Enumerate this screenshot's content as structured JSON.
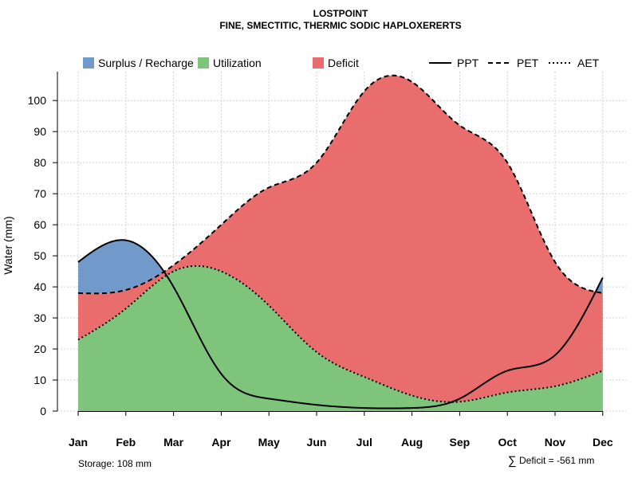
{
  "colors": {
    "surplus": "#7199c9",
    "utilization": "#7ec47a",
    "deficit": "#ea6d6e"
  },
  "chart_data": {
    "type": "area",
    "title": "LOSTPOINT",
    "subtitle": "FINE, SMECTITIC, THERMIC SODIC HAPLOXERERTS",
    "ylabel": "Water (mm)",
    "xlabel": "",
    "ylim": [
      0,
      108
    ],
    "yticks": [
      0,
      10,
      20,
      30,
      40,
      50,
      60,
      70,
      80,
      90,
      100
    ],
    "categories": [
      "Jan",
      "Feb",
      "Mar",
      "Apr",
      "May",
      "Jun",
      "Jul",
      "Aug",
      "Sep",
      "Oct",
      "Nov",
      "Dec"
    ],
    "series": [
      {
        "name": "PPT",
        "style": "solid",
        "values": [
          48,
          55,
          40,
          12,
          4,
          2,
          1,
          1,
          4,
          13,
          18,
          43
        ]
      },
      {
        "name": "PET",
        "style": "dashed",
        "values": [
          38,
          39,
          47,
          60,
          72,
          80,
          103,
          106,
          92,
          80,
          48,
          38
        ]
      },
      {
        "name": "AET",
        "style": "dotted",
        "values": [
          23,
          33,
          45,
          45,
          34,
          19,
          11,
          5,
          3,
          6,
          8,
          13
        ]
      }
    ],
    "fills": [
      {
        "name": "Surplus / Recharge",
        "color_key": "surplus"
      },
      {
        "name": "Utilization",
        "color_key": "utilization"
      },
      {
        "name": "Deficit",
        "color_key": "deficit"
      }
    ],
    "footer": {
      "storage": "Storage: 108 mm",
      "deficit_symbol": "∑",
      "deficit": "Deficit = -561 mm"
    }
  }
}
